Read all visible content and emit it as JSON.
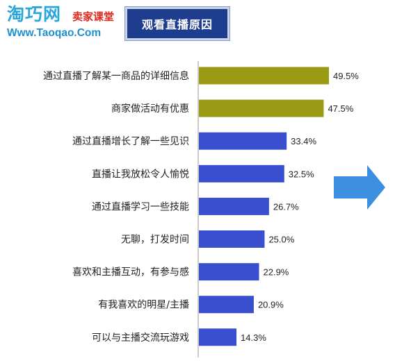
{
  "logo": {
    "name": "淘巧网",
    "tagline": "卖家课堂",
    "url": "Www.Taoqao.Com"
  },
  "banner": {
    "title": "观看直播原因"
  },
  "chart_data": {
    "type": "bar",
    "orientation": "horizontal",
    "title": "观看直播原因",
    "categories": [
      "通过直播了解某一商品的详细信息",
      "商家做活动有优惠",
      "通过直播增长了解一些见识",
      "直播让我放松令人愉悦",
      "通过直播学习一些技能",
      "无聊，打发时间",
      "喜欢和主播互动，有参与感",
      "有我喜欢的明星/主播",
      "可以与主播交流玩游戏"
    ],
    "values": [
      49.5,
      47.5,
      33.4,
      32.5,
      26.7,
      25.0,
      22.9,
      20.9,
      14.3
    ],
    "value_labels": [
      "49.5%",
      "47.5%",
      "33.4%",
      "32.5%",
      "26.7%",
      "25.0%",
      "22.9%",
      "20.9%",
      "14.3%"
    ],
    "bar_colors": [
      "#9a9a14",
      "#9a9a14",
      "#3a4fcf",
      "#3a4fcf",
      "#3a4fcf",
      "#3a4fcf",
      "#3a4fcf",
      "#3a4fcf",
      "#3a4fcf"
    ],
    "xlim": [
      0,
      60
    ],
    "xlabel": "",
    "ylabel": "",
    "grid": false,
    "legend": "none"
  },
  "colors": {
    "highlight_bar": "#9a9a14",
    "normal_bar": "#3a4fcf",
    "banner_bg": "#1f3d8e",
    "arrow": "#3d8fe0"
  },
  "icons": {
    "arrow": "right-arrow-icon"
  }
}
